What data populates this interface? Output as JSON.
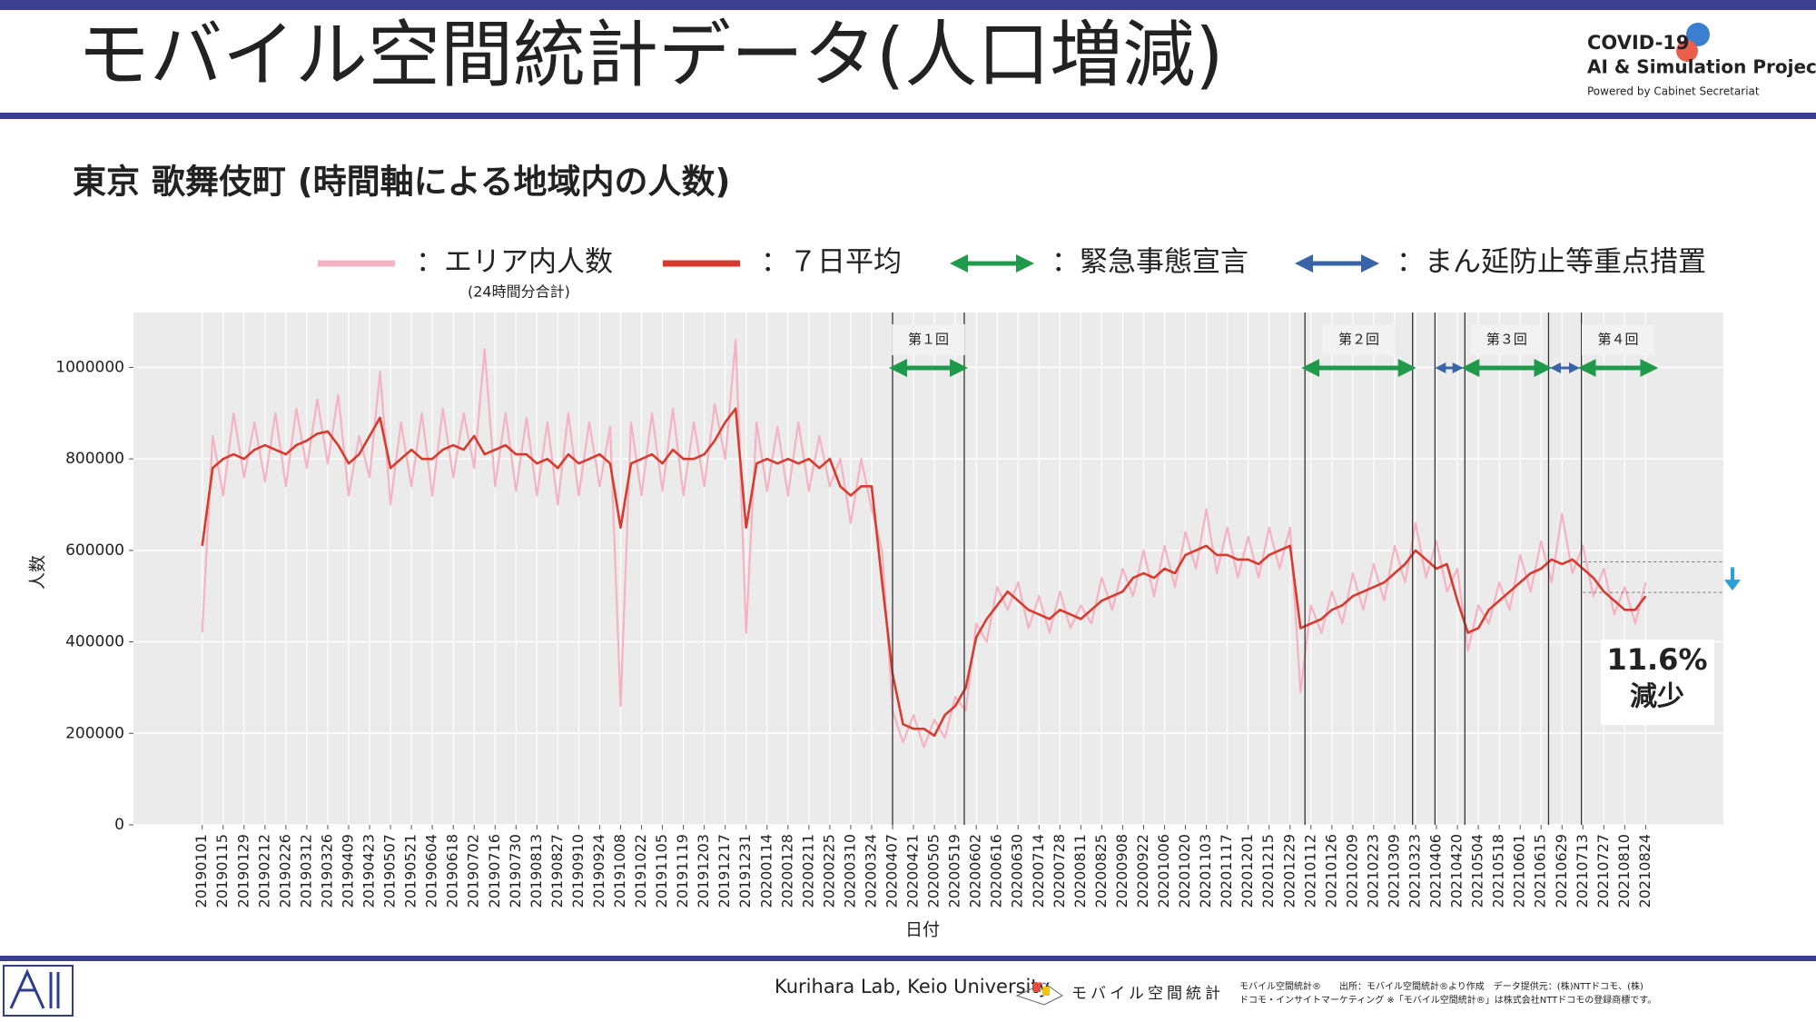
{
  "header": {
    "title": "モバイル空間統計データ(人口増減)",
    "logo_line1": "COVID-19",
    "logo_line2": "AI & Simulation Project",
    "logo_line3": "Powered by Cabinet Secretariat"
  },
  "footer": {
    "credit": "Kurihara Lab, Keio University",
    "logo_text": "モバイル空間統計",
    "note1": "モバイル空間統計®　　出所：モバイル空間統計®より作成　データ提供元：(株)NTTドコモ、(株)",
    "note2": "ドコモ・インサイトマーケティング ※「モバイル空間統計®」は株式会社NTTドコモの登録商標です。"
  },
  "chart_data": {
    "type": "line",
    "title": "東京 歌舞伎町 (時間軸による地域内の人数)",
    "x_label": "日付",
    "y_label": "人数",
    "xlim": [
      "20181116",
      "20211015"
    ],
    "ylim": [
      0,
      1120000
    ],
    "yticks": [
      0,
      200000,
      400000,
      600000,
      800000,
      1000000
    ],
    "grid": true,
    "xticks": [
      "20190101",
      "20190115",
      "20190129",
      "20190212",
      "20190226",
      "20190312",
      "20190326",
      "20190409",
      "20190423",
      "20190507",
      "20190521",
      "20190604",
      "20190618",
      "20190702",
      "20190716",
      "20190730",
      "20190813",
      "20190827",
      "20190910",
      "20190924",
      "20191008",
      "20191022",
      "20191105",
      "20191119",
      "20191203",
      "20191217",
      "20191231",
      "20200114",
      "20200128",
      "20200211",
      "20200225",
      "20200310",
      "20200324",
      "20200407",
      "20200421",
      "20200505",
      "20200519",
      "20200602",
      "20200616",
      "20200630",
      "20200714",
      "20200728",
      "20200811",
      "20200825",
      "20200908",
      "20200922",
      "20201006",
      "20201020",
      "20201103",
      "20201117",
      "20201201",
      "20201215",
      "20201229",
      "20210112",
      "20210126",
      "20210209",
      "20210223",
      "20210309",
      "20210323",
      "20210406",
      "20210420",
      "20210504",
      "20210518",
      "20210601",
      "20210615",
      "20210629",
      "20210713",
      "20210727",
      "20210810",
      "20210824"
    ],
    "x": [
      "20190101",
      "20190108",
      "20190115",
      "20190122",
      "20190129",
      "20190205",
      "20190212",
      "20190219",
      "20190226",
      "20190305",
      "20190312",
      "20190319",
      "20190326",
      "20190402",
      "20190409",
      "20190416",
      "20190423",
      "20190430",
      "20190507",
      "20190514",
      "20190521",
      "20190528",
      "20190604",
      "20190611",
      "20190618",
      "20190625",
      "20190702",
      "20190709",
      "20190716",
      "20190723",
      "20190730",
      "20190806",
      "20190813",
      "20190820",
      "20190827",
      "20190903",
      "20190910",
      "20190917",
      "20190924",
      "20191001",
      "20191008",
      "20191015",
      "20191022",
      "20191029",
      "20191105",
      "20191112",
      "20191119",
      "20191126",
      "20191203",
      "20191210",
      "20191217",
      "20191224",
      "20191231",
      "20200107",
      "20200114",
      "20200121",
      "20200128",
      "20200204",
      "20200211",
      "20200218",
      "20200225",
      "20200303",
      "20200310",
      "20200317",
      "20200324",
      "20200331",
      "20200407",
      "20200414",
      "20200421",
      "20200428",
      "20200505",
      "20200512",
      "20200519",
      "20200526",
      "20200602",
      "20200609",
      "20200616",
      "20200623",
      "20200630",
      "20200707",
      "20200714",
      "20200721",
      "20200728",
      "20200804",
      "20200811",
      "20200818",
      "20200825",
      "20200901",
      "20200908",
      "20200915",
      "20200922",
      "20200929",
      "20201006",
      "20201013",
      "20201020",
      "20201027",
      "20201103",
      "20201110",
      "20201117",
      "20201124",
      "20201201",
      "20201208",
      "20201215",
      "20201222",
      "20201229",
      "20210105",
      "20210112",
      "20210119",
      "20210126",
      "20210202",
      "20210209",
      "20210216",
      "20210223",
      "20210302",
      "20210309",
      "20210316",
      "20210323",
      "20210330",
      "20210406",
      "20210413",
      "20210420",
      "20210427",
      "20210504",
      "20210511",
      "20210518",
      "20210525",
      "20210601",
      "20210608",
      "20210615",
      "20210622",
      "20210629",
      "20210706",
      "20210713",
      "20210720",
      "20210727",
      "20210803",
      "20210810",
      "20210817",
      "20210824"
    ],
    "series": [
      {
        "name": "：エリア内人数",
        "note": "(24時間分合計)",
        "color": "#f5b3c1",
        "values": [
          420000,
          850000,
          720000,
          900000,
          760000,
          880000,
          750000,
          900000,
          740000,
          910000,
          780000,
          930000,
          790000,
          940000,
          720000,
          850000,
          760000,
          990000,
          700000,
          880000,
          740000,
          900000,
          720000,
          910000,
          760000,
          900000,
          780000,
          1040000,
          740000,
          900000,
          730000,
          890000,
          720000,
          880000,
          700000,
          900000,
          720000,
          880000,
          740000,
          870000,
          260000,
          880000,
          720000,
          900000,
          730000,
          910000,
          720000,
          880000,
          740000,
          920000,
          800000,
          1060000,
          420000,
          880000,
          730000,
          870000,
          720000,
          880000,
          730000,
          850000,
          740000,
          800000,
          660000,
          800000,
          690000,
          600000,
          250000,
          180000,
          240000,
          170000,
          230000,
          190000,
          280000,
          250000,
          440000,
          400000,
          520000,
          470000,
          530000,
          430000,
          500000,
          420000,
          510000,
          430000,
          480000,
          440000,
          540000,
          470000,
          560000,
          500000,
          600000,
          500000,
          610000,
          520000,
          640000,
          560000,
          690000,
          550000,
          650000,
          540000,
          630000,
          540000,
          650000,
          560000,
          650000,
          290000,
          480000,
          420000,
          510000,
          440000,
          550000,
          470000,
          570000,
          490000,
          610000,
          530000,
          660000,
          540000,
          620000,
          510000,
          560000,
          380000,
          480000,
          440000,
          530000,
          470000,
          590000,
          510000,
          620000,
          530000,
          680000,
          550000,
          610000,
          500000,
          560000,
          460000,
          520000,
          440000,
          530000
        ]
      },
      {
        "name": "：７日平均",
        "color": "#d93a2e",
        "values": [
          610000,
          780000,
          800000,
          810000,
          800000,
          820000,
          830000,
          820000,
          810000,
          830000,
          840000,
          855000,
          860000,
          830000,
          790000,
          810000,
          850000,
          890000,
          780000,
          800000,
          820000,
          800000,
          800000,
          820000,
          830000,
          820000,
          850000,
          810000,
          820000,
          830000,
          810000,
          810000,
          790000,
          800000,
          780000,
          810000,
          790000,
          800000,
          810000,
          790000,
          650000,
          790000,
          800000,
          810000,
          790000,
          820000,
          800000,
          800000,
          810000,
          840000,
          880000,
          910000,
          650000,
          790000,
          800000,
          790000,
          800000,
          790000,
          800000,
          780000,
          800000,
          740000,
          720000,
          740000,
          740000,
          530000,
          330000,
          220000,
          210000,
          210000,
          195000,
          240000,
          260000,
          300000,
          410000,
          450000,
          480000,
          510000,
          490000,
          470000,
          460000,
          450000,
          470000,
          460000,
          450000,
          470000,
          490000,
          500000,
          510000,
          540000,
          550000,
          540000,
          560000,
          550000,
          590000,
          600000,
          610000,
          590000,
          590000,
          580000,
          580000,
          570000,
          590000,
          600000,
          610000,
          430000,
          440000,
          450000,
          470000,
          480000,
          500000,
          510000,
          520000,
          530000,
          550000,
          570000,
          600000,
          580000,
          560000,
          570000,
          490000,
          420000,
          430000,
          470000,
          490000,
          510000,
          530000,
          550000,
          560000,
          580000,
          570000,
          580000,
          560000,
          540000,
          510000,
          490000,
          470000,
          470000,
          500000
        ]
      }
    ],
    "emergency": {
      "name": "：緊急事態宣言",
      "color": "#1f9a4b",
      "periods": [
        {
          "label": "第１回",
          "start": "20200407",
          "end": "20200525"
        },
        {
          "label": "第２回",
          "start": "20210108",
          "end": "20210321"
        },
        {
          "label": "第３回",
          "start": "20210425",
          "end": "20210620"
        },
        {
          "label": "第４回",
          "start": "20210712",
          "end": "20210830"
        }
      ]
    },
    "semi": {
      "name": "：まん延防止等重点措置",
      "color": "#3a64a8",
      "periods": [
        {
          "start": "20210405",
          "end": "20210424"
        },
        {
          "start": "20210621",
          "end": "20210711"
        }
      ]
    },
    "boundaries": [
      "20200407",
      "20200525",
      "20210108",
      "20210321",
      "20210405",
      "20210425",
      "20210620",
      "20210712"
    ],
    "annotation": {
      "text": "11.6%",
      "sub": "減少",
      "from_date": "20210713",
      "ref_lines": [
        575000,
        508000
      ],
      "arrow_color": "#2a9fd8"
    }
  }
}
